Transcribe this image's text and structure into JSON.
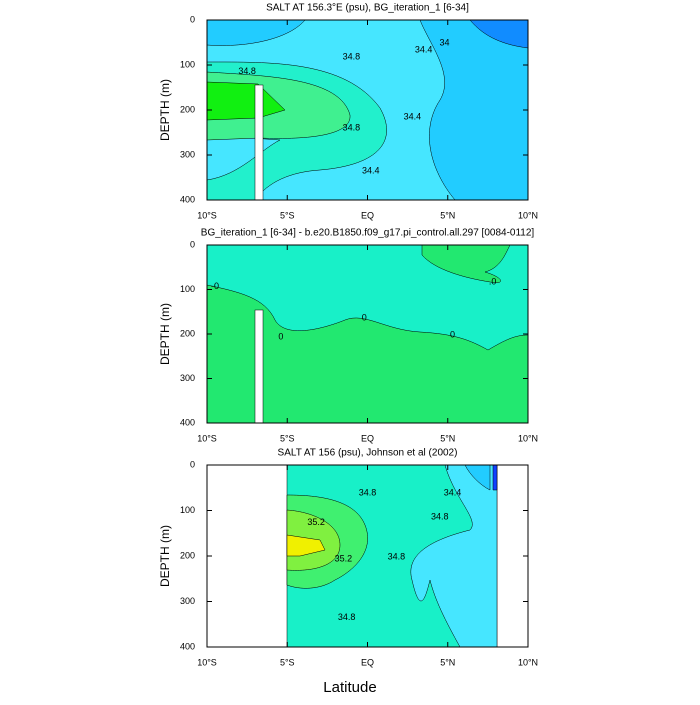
{
  "chart_data": [
    {
      "type": "contour",
      "title": "SALT AT 156.3°E (psu), BG_iteration_1 [6-34]",
      "ylabel": "DEPTH (m)",
      "xlim": [
        -10,
        10
      ],
      "xticks": [
        {
          "value": -10,
          "label": "10°S"
        },
        {
          "value": -5,
          "label": "5°S"
        },
        {
          "value": 0,
          "label": "EQ"
        },
        {
          "value": 5,
          "label": "5°N"
        },
        {
          "value": 10,
          "label": "10°N"
        }
      ],
      "ylim": [
        400,
        0
      ],
      "yticks": [
        0,
        100,
        200,
        300,
        400
      ],
      "contour_labels": [
        {
          "value": 34.8,
          "lat": -7.5,
          "depth": 115
        },
        {
          "value": 34.8,
          "lat": -1,
          "depth": 82
        },
        {
          "value": 34.4,
          "lat": 3.5,
          "depth": 67
        },
        {
          "value": 34,
          "lat": 4.8,
          "depth": 51
        },
        {
          "value": 34.8,
          "lat": -1,
          "depth": 240
        },
        {
          "value": 34.4,
          "lat": 2.8,
          "depth": 216
        },
        {
          "value": 34.4,
          "lat": 0.2,
          "depth": 336
        }
      ]
    },
    {
      "type": "contour",
      "title": "BG_iteration_1 [6-34] - b.e20.B1850.f09_g17.pi_control.all.297 [0084-0112]",
      "ylabel": "DEPTH (m)",
      "xlim": [
        -10,
        10
      ],
      "xticks": [
        {
          "value": -10,
          "label": "10°S"
        },
        {
          "value": -5,
          "label": "5°S"
        },
        {
          "value": 0,
          "label": "EQ"
        },
        {
          "value": 5,
          "label": "5°N"
        },
        {
          "value": 10,
          "label": "10°N"
        }
      ],
      "ylim": [
        400,
        0
      ],
      "yticks": [
        0,
        100,
        200,
        300,
        400
      ],
      "contour_labels": [
        {
          "value": 0,
          "label": "-0",
          "lat": -9.5,
          "depth": 94
        },
        {
          "value": 0,
          "lat": -5.4,
          "depth": 207
        },
        {
          "value": 0,
          "lat": -0.2,
          "depth": 164
        },
        {
          "value": 0,
          "lat": 5.3,
          "depth": 202
        },
        {
          "value": 0,
          "label": ".0",
          "lat": 7.8,
          "depth": 83
        }
      ]
    },
    {
      "type": "contour",
      "title": "SALT AT 156 (psu), Johnson et al (2002)",
      "ylabel": "DEPTH (m)",
      "xlabel": "Latitude",
      "xlim": [
        -10,
        10
      ],
      "xticks": [
        {
          "value": -10,
          "label": "10°S"
        },
        {
          "value": -5,
          "label": "5°S"
        },
        {
          "value": 0,
          "label": "EQ"
        },
        {
          "value": 5,
          "label": "5°N"
        },
        {
          "value": 10,
          "label": "10°N"
        }
      ],
      "ylim": [
        400,
        0
      ],
      "yticks": [
        0,
        100,
        200,
        300,
        400
      ],
      "contour_labels": [
        {
          "value": 34.8,
          "lat": 0,
          "depth": 62
        },
        {
          "value": 34.4,
          "lat": 5.3,
          "depth": 62
        },
        {
          "value": 35.2,
          "lat": -3.2,
          "depth": 127
        },
        {
          "value": 34.8,
          "lat": 4.5,
          "depth": 115
        },
        {
          "value": 35.2,
          "lat": -1.5,
          "depth": 207
        },
        {
          "value": 34.8,
          "lat": 1.8,
          "depth": 202
        },
        {
          "value": 34.8,
          "lat": -1.3,
          "depth": 335
        }
      ]
    }
  ]
}
